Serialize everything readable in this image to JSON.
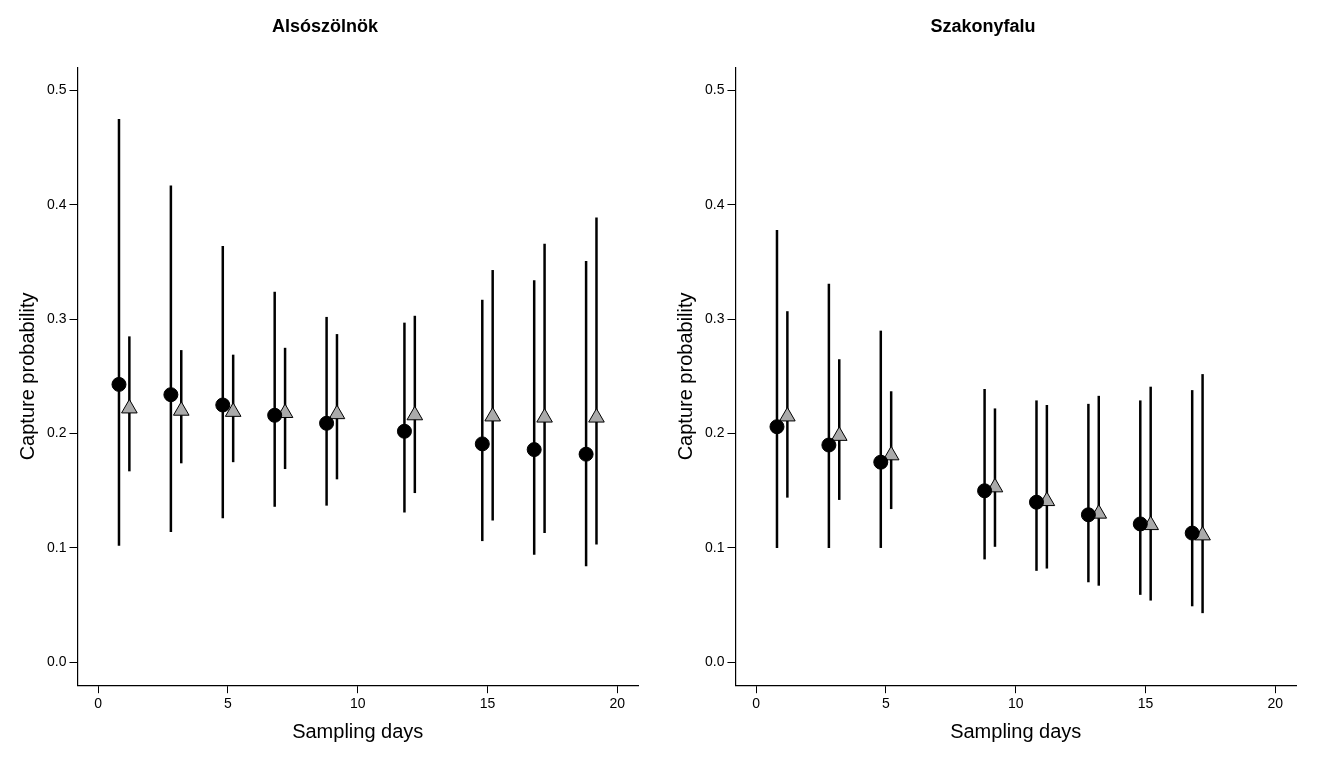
{
  "chart_data": [
    {
      "type": "scatter",
      "title": "Alsószölnök",
      "xlabel": "Sampling days",
      "ylabel": "Capture probability",
      "xlim": [
        -0.8,
        20.8
      ],
      "xticks": [
        0,
        5,
        10,
        15,
        20
      ],
      "ylim": [
        -0.02,
        0.52
      ],
      "yticks": [
        {
          "value": 0,
          "label": "0.0"
        },
        0.1,
        0.2,
        0.3,
        0.4,
        0.5
      ],
      "grid": false,
      "legend": false,
      "series": [
        {
          "color": "#000000",
          "marker": "circle",
          "x": [
            0.8,
            2.8,
            4.8,
            6.8,
            8.8,
            11.8,
            14.8,
            16.8,
            18.8
          ],
          "values": [
            0.243,
            0.234,
            0.225,
            0.216,
            0.209,
            0.202,
            0.191,
            0.186,
            0.182
          ],
          "errors": [
            [
              0.102,
              0.475
            ],
            [
              0.114,
              0.417
            ],
            [
              0.126,
              0.364
            ],
            [
              0.136,
              0.324
            ],
            [
              0.137,
              0.302
            ],
            [
              0.131,
              0.297
            ],
            [
              0.106,
              0.317
            ],
            [
              0.094,
              0.334
            ],
            [
              0.084,
              0.351
            ]
          ]
        },
        {
          "color": "#aaaaaa",
          "marker": "triangle",
          "x": [
            1.2,
            3.2,
            5.2,
            7.2,
            9.2,
            12.2,
            15.2,
            17.2,
            19.2
          ],
          "values": [
            0.222,
            0.22,
            0.219,
            0.218,
            0.217,
            0.216,
            0.215,
            0.214,
            0.214
          ],
          "errors": [
            [
              0.167,
              0.285
            ],
            [
              0.174,
              0.273
            ],
            [
              0.175,
              0.269
            ],
            [
              0.169,
              0.275
            ],
            [
              0.16,
              0.287
            ],
            [
              0.148,
              0.303
            ],
            [
              0.124,
              0.343
            ],
            [
              0.113,
              0.366
            ],
            [
              0.103,
              0.389
            ]
          ]
        }
      ]
    },
    {
      "type": "scatter",
      "title": "Szakonyfalu",
      "xlabel": "Sampling days",
      "ylabel": "Capture probability",
      "xlim": [
        -0.8,
        20.8
      ],
      "xticks": [
        0,
        5,
        10,
        15,
        20
      ],
      "ylim": [
        -0.02,
        0.52
      ],
      "yticks": [
        {
          "value": 0,
          "label": "0.0"
        },
        0.1,
        0.2,
        0.3,
        0.4,
        0.5
      ],
      "grid": false,
      "legend": false,
      "series": [
        {
          "color": "#000000",
          "marker": "circle",
          "x": [
            0.8,
            2.8,
            4.8,
            8.8,
            10.8,
            12.8,
            14.8,
            16.8
          ],
          "values": [
            0.206,
            0.19,
            0.175,
            0.15,
            0.14,
            0.129,
            0.121,
            0.113
          ],
          "errors": [
            [
              0.1,
              0.378
            ],
            [
              0.1,
              0.331
            ],
            [
              0.1,
              0.29
            ],
            [
              0.09,
              0.239
            ],
            [
              0.08,
              0.229
            ],
            [
              0.07,
              0.226
            ],
            [
              0.059,
              0.229
            ],
            [
              0.049,
              0.238
            ]
          ]
        },
        {
          "color": "#aaaaaa",
          "marker": "triangle",
          "x": [
            1.2,
            3.2,
            5.2,
            9.2,
            11.2,
            13.2,
            15.2,
            17.2
          ],
          "values": [
            0.215,
            0.198,
            0.181,
            0.153,
            0.141,
            0.13,
            0.12,
            0.111
          ],
          "errors": [
            [
              0.144,
              0.307
            ],
            [
              0.142,
              0.265
            ],
            [
              0.134,
              0.237
            ],
            [
              0.101,
              0.222
            ],
            [
              0.082,
              0.225
            ],
            [
              0.067,
              0.233
            ],
            [
              0.054,
              0.241
            ],
            [
              0.043,
              0.252
            ]
          ]
        }
      ]
    }
  ]
}
